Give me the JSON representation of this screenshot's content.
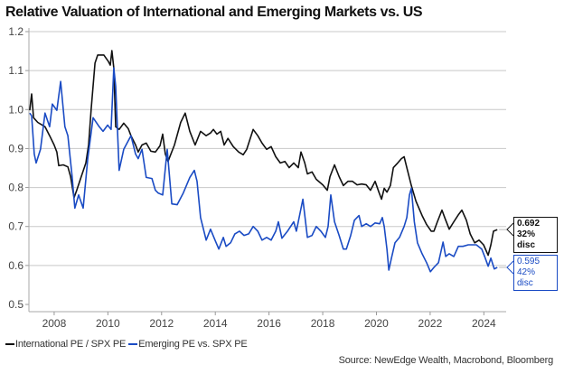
{
  "chart_data": {
    "type": "line",
    "title": "Relative Valuation of International and Emerging Markets vs. US",
    "xlabel": "",
    "ylabel": "",
    "xlim": [
      2007.06,
      2024.83
    ],
    "ylim": [
      0.5,
      1.2
    ],
    "grid": true,
    "yticks": [
      "0.5",
      "0.6",
      "0.7",
      "0.8",
      "0.9",
      "1.0",
      "1.1",
      "1.2"
    ],
    "ytick_values": [
      0.5,
      0.6,
      0.7,
      0.8,
      0.9,
      1.0,
      1.1,
      1.2
    ],
    "xticks": [
      "2008",
      "2010",
      "2012",
      "2014",
      "2016",
      "2018",
      "2020",
      "2022",
      "2024"
    ],
    "xtick_values": [
      2008,
      2010,
      2012,
      2014,
      2016,
      2018,
      2020,
      2022,
      2024
    ],
    "legend_position": "bottom-left",
    "series": [
      {
        "name": "International PE / SPX PE",
        "color": "#111111",
        "x": [
          2007.09,
          2007.16,
          2007.23,
          2007.39,
          2007.66,
          2007.83,
          2008.0,
          2008.1,
          2008.17,
          2008.34,
          2008.51,
          2008.61,
          2008.74,
          2008.84,
          2009.01,
          2009.18,
          2009.28,
          2009.38,
          2009.52,
          2009.62,
          2009.85,
          2010.02,
          2010.09,
          2010.15,
          2010.22,
          2010.29,
          2010.42,
          2010.59,
          2010.76,
          2010.86,
          2011.03,
          2011.13,
          2011.27,
          2011.43,
          2011.6,
          2011.77,
          2011.94,
          2012.04,
          2012.14,
          2012.24,
          2012.48,
          2012.71,
          2012.88,
          2013.05,
          2013.25,
          2013.45,
          2013.66,
          2013.82,
          2013.93,
          2014.06,
          2014.2,
          2014.33,
          2014.47,
          2014.67,
          2014.87,
          2015.04,
          2015.17,
          2015.41,
          2015.58,
          2015.74,
          2015.91,
          2016.08,
          2016.25,
          2016.42,
          2016.59,
          2016.75,
          2016.92,
          2017.09,
          2017.19,
          2017.33,
          2017.43,
          2017.6,
          2017.76,
          2018.0,
          2018.17,
          2018.27,
          2018.44,
          2018.61,
          2018.77,
          2018.94,
          2019.11,
          2019.28,
          2019.45,
          2019.62,
          2019.78,
          2019.95,
          2020.09,
          2020.19,
          2020.29,
          2020.39,
          2020.52,
          2020.63,
          2020.79,
          2020.93,
          2021.03,
          2021.13,
          2021.3,
          2021.47,
          2021.7,
          2021.87,
          2022.04,
          2022.14,
          2022.27,
          2022.44,
          2022.54,
          2022.71,
          2022.88,
          2023.05,
          2023.18,
          2023.35,
          2023.49,
          2023.66,
          2023.82,
          2023.99,
          2024.16,
          2024.26,
          2024.36,
          2024.5
        ],
        "y": [
          0.998,
          1.04,
          0.979,
          0.967,
          0.956,
          0.933,
          0.909,
          0.891,
          0.856,
          0.858,
          0.853,
          0.828,
          0.774,
          0.793,
          0.828,
          0.863,
          0.909,
          1.002,
          1.119,
          1.14,
          1.14,
          1.123,
          1.114,
          1.151,
          1.107,
          0.956,
          0.949,
          0.965,
          0.951,
          0.933,
          0.909,
          0.891,
          0.909,
          0.914,
          0.893,
          0.891,
          0.907,
          0.937,
          0.886,
          0.867,
          0.909,
          0.967,
          0.991,
          0.944,
          0.909,
          0.944,
          0.933,
          0.94,
          0.949,
          0.937,
          0.944,
          0.909,
          0.926,
          0.905,
          0.891,
          0.884,
          0.898,
          0.949,
          0.933,
          0.914,
          0.898,
          0.905,
          0.879,
          0.863,
          0.867,
          0.851,
          0.863,
          0.851,
          0.891,
          0.863,
          0.835,
          0.84,
          0.821,
          0.807,
          0.793,
          0.828,
          0.858,
          0.828,
          0.805,
          0.816,
          0.816,
          0.807,
          0.809,
          0.807,
          0.793,
          0.816,
          0.788,
          0.77,
          0.798,
          0.788,
          0.805,
          0.851,
          0.863,
          0.874,
          0.879,
          0.851,
          0.805,
          0.765,
          0.728,
          0.705,
          0.688,
          0.688,
          0.712,
          0.742,
          0.723,
          0.693,
          0.712,
          0.73,
          0.742,
          0.716,
          0.681,
          0.658,
          0.665,
          0.653,
          0.626,
          0.653,
          0.688,
          0.692
        ]
      },
      {
        "name": "Emerging PE vs. SPX PE",
        "color": "#1a4bc4",
        "x": [
          2007.09,
          2007.16,
          2007.26,
          2007.33,
          2007.49,
          2007.66,
          2007.83,
          2007.93,
          2008.1,
          2008.24,
          2008.4,
          2008.51,
          2008.67,
          2008.77,
          2008.91,
          2009.08,
          2009.25,
          2009.45,
          2009.68,
          2009.82,
          2009.99,
          2010.12,
          2010.22,
          2010.29,
          2010.42,
          2010.59,
          2010.86,
          2011.03,
          2011.13,
          2011.27,
          2011.43,
          2011.64,
          2011.77,
          2011.87,
          2012.04,
          2012.21,
          2012.38,
          2012.58,
          2012.81,
          2013.05,
          2013.22,
          2013.32,
          2013.45,
          2013.66,
          2013.82,
          2013.99,
          2014.13,
          2014.3,
          2014.4,
          2014.57,
          2014.73,
          2014.9,
          2015.07,
          2015.24,
          2015.41,
          2015.58,
          2015.74,
          2015.91,
          2016.08,
          2016.25,
          2016.35,
          2016.48,
          2016.69,
          2016.92,
          2017.02,
          2017.26,
          2017.43,
          2017.6,
          2017.76,
          2017.93,
          2018.1,
          2018.2,
          2018.3,
          2018.44,
          2018.61,
          2018.77,
          2018.88,
          2019.04,
          2019.18,
          2019.35,
          2019.45,
          2019.62,
          2019.78,
          2019.95,
          2020.12,
          2020.22,
          2020.29,
          2020.39,
          2020.46,
          2020.56,
          2020.69,
          2020.86,
          2021.03,
          2021.13,
          2021.23,
          2021.3,
          2021.41,
          2021.53,
          2021.7,
          2021.87,
          2022.01,
          2022.14,
          2022.31,
          2022.48,
          2022.58,
          2022.71,
          2022.88,
          2023.05,
          2023.22,
          2023.42,
          2023.59,
          2023.72,
          2023.92,
          2024.03,
          2024.16,
          2024.26,
          2024.39,
          2024.5
        ],
        "y": [
          0.991,
          0.984,
          0.886,
          0.863,
          0.898,
          0.991,
          0.956,
          1.014,
          0.998,
          1.072,
          0.956,
          0.933,
          0.828,
          0.747,
          0.781,
          0.747,
          0.874,
          0.979,
          0.956,
          0.944,
          0.96,
          0.949,
          1.107,
          1.06,
          0.844,
          0.898,
          0.933,
          0.886,
          0.874,
          0.898,
          0.826,
          0.823,
          0.793,
          0.786,
          0.781,
          0.898,
          0.758,
          0.756,
          0.786,
          0.826,
          0.844,
          0.816,
          0.723,
          0.665,
          0.693,
          0.665,
          0.642,
          0.672,
          0.649,
          0.658,
          0.681,
          0.688,
          0.677,
          0.681,
          0.7,
          0.688,
          0.665,
          0.672,
          0.665,
          0.688,
          0.712,
          0.67,
          0.688,
          0.712,
          0.688,
          0.77,
          0.672,
          0.677,
          0.7,
          0.688,
          0.672,
          0.7,
          0.781,
          0.712,
          0.677,
          0.642,
          0.642,
          0.677,
          0.716,
          0.728,
          0.7,
          0.707,
          0.7,
          0.709,
          0.707,
          0.723,
          0.7,
          0.642,
          0.588,
          0.619,
          0.658,
          0.672,
          0.7,
          0.723,
          0.781,
          0.798,
          0.712,
          0.658,
          0.63,
          0.607,
          0.584,
          0.595,
          0.607,
          0.66,
          0.623,
          0.63,
          0.623,
          0.649,
          0.649,
          0.653,
          0.653,
          0.653,
          0.642,
          0.623,
          0.598,
          0.619,
          0.591,
          0.595
        ]
      }
    ],
    "annotations": [
      {
        "series": "International PE / SPX PE",
        "value": 0.692,
        "line1": "0.692",
        "line2": "32% disc"
      },
      {
        "series": "Emerging PE vs. SPX PE",
        "value": 0.595,
        "line1": "0.595",
        "line2": "42% disc"
      }
    ],
    "source": "Source: NewEdge Wealth, Macrobond, Bloomberg"
  },
  "legend": {
    "items": [
      {
        "label": "International PE / SPX PE",
        "color": "#111111"
      },
      {
        "label": "Emerging PE vs. SPX PE",
        "color": "#1a4bc4"
      }
    ]
  }
}
